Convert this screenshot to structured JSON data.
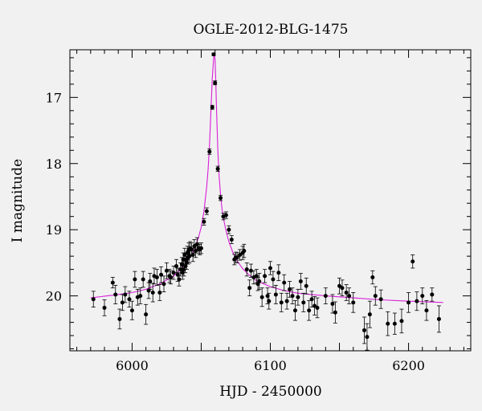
{
  "chart_data": {
    "type": "scatter",
    "title": "OGLE-2012-BLG-1475",
    "xlabel": "HJD - 2450000",
    "ylabel": "I magnitude",
    "xlim": [
      5955,
      6245
    ],
    "ylim": [
      20.83,
      16.28
    ],
    "y_inverted": true,
    "x_ticks": [
      6000,
      6100,
      6200
    ],
    "y_ticks": [
      17,
      18,
      19,
      20
    ],
    "grid": false,
    "colors": {
      "points": "#000000",
      "model": "#d81fd8",
      "background": "#f1f1f1"
    },
    "series": [
      {
        "kind": "points",
        "x": [
          5972,
          5980,
          5986,
          5988,
          5991,
          5993,
          5995,
          5998,
          6000,
          6002,
          6004,
          6006,
          6008,
          6010,
          6012,
          6013,
          6015,
          6016,
          6018,
          6020,
          6021,
          6023,
          6025,
          6027,
          6028,
          6030,
          6032,
          6033,
          6034,
          6035,
          6036,
          6036.5,
          6037,
          6037.5,
          6038,
          6038.5,
          6039,
          6039.5,
          6040,
          6040.5,
          6041,
          6041.5,
          6042,
          6043,
          6044,
          6045,
          6046,
          6047,
          6048,
          6049,
          6050,
          6052,
          6054,
          6056,
          6058,
          6059,
          6060,
          6062,
          6064,
          6066,
          6068,
          6070,
          6072,
          6074,
          6075,
          6076,
          6078,
          6080,
          6081,
          6083,
          6085,
          6086,
          6088,
          6090,
          6091,
          6092,
          6094,
          6096,
          6098,
          6099,
          6100,
          6102,
          6104,
          6106,
          6108,
          6110,
          6112,
          6114,
          6116,
          6118,
          6120,
          6122,
          6124,
          6126,
          6128,
          6130,
          6132,
          6134,
          6140,
          6145,
          6147,
          6150,
          6152,
          6155,
          6157,
          6160,
          6168,
          6170,
          6172,
          6174,
          6176,
          6180,
          6185,
          6190,
          6195,
          6200,
          6203,
          6206,
          6210,
          6213,
          6217,
          6222
        ],
        "y": [
          20.05,
          20.18,
          19.8,
          19.98,
          20.35,
          20.1,
          19.98,
          20.05,
          20.22,
          19.75,
          20.02,
          20.0,
          19.75,
          20.28,
          19.92,
          19.78,
          19.95,
          19.7,
          19.72,
          19.95,
          19.68,
          19.82,
          19.62,
          19.7,
          19.72,
          19.65,
          19.55,
          19.68,
          19.75,
          19.6,
          19.52,
          19.65,
          19.45,
          19.6,
          19.38,
          19.55,
          19.45,
          19.5,
          19.35,
          19.42,
          19.3,
          19.4,
          19.28,
          19.3,
          19.38,
          19.25,
          19.32,
          19.22,
          19.28,
          19.3,
          19.28,
          18.88,
          18.72,
          17.82,
          17.15,
          16.35,
          16.78,
          18.08,
          18.52,
          18.8,
          18.78,
          19.0,
          19.15,
          19.45,
          19.42,
          19.42,
          19.38,
          19.35,
          19.32,
          19.6,
          19.88,
          19.62,
          19.72,
          19.7,
          19.82,
          19.78,
          20.02,
          19.7,
          20.0,
          20.08,
          19.58,
          19.75,
          19.98,
          19.65,
          20.1,
          19.8,
          20.08,
          19.9,
          20.0,
          20.22,
          20.02,
          19.78,
          20.1,
          19.85,
          20.22,
          20.05,
          20.15,
          20.18,
          20.0,
          20.12,
          20.25,
          19.85,
          19.88,
          19.95,
          20.0,
          20.1,
          20.52,
          20.62,
          20.28,
          19.72,
          20.0,
          20.05,
          20.42,
          20.42,
          20.38,
          20.1,
          19.48,
          20.08,
          20.0,
          20.22,
          19.98,
          20.35
        ],
        "yerr": [
          0.12,
          0.12,
          0.08,
          0.14,
          0.15,
          0.12,
          0.12,
          0.12,
          0.14,
          0.12,
          0.12,
          0.12,
          0.12,
          0.15,
          0.12,
          0.12,
          0.14,
          0.12,
          0.12,
          0.12,
          0.12,
          0.12,
          0.12,
          0.1,
          0.1,
          0.1,
          0.1,
          0.1,
          0.1,
          0.1,
          0.1,
          0.1,
          0.1,
          0.1,
          0.1,
          0.1,
          0.1,
          0.1,
          0.1,
          0.1,
          0.1,
          0.1,
          0.1,
          0.1,
          0.1,
          0.1,
          0.1,
          0.1,
          0.08,
          0.08,
          0.08,
          0.05,
          0.05,
          0.04,
          0.03,
          0.02,
          0.03,
          0.04,
          0.04,
          0.05,
          0.05,
          0.06,
          0.06,
          0.08,
          0.08,
          0.08,
          0.08,
          0.1,
          0.1,
          0.1,
          0.12,
          0.1,
          0.1,
          0.1,
          0.1,
          0.12,
          0.14,
          0.1,
          0.12,
          0.12,
          0.1,
          0.12,
          0.14,
          0.12,
          0.14,
          0.12,
          0.12,
          0.12,
          0.12,
          0.15,
          0.12,
          0.12,
          0.14,
          0.12,
          0.15,
          0.12,
          0.14,
          0.15,
          0.12,
          0.14,
          0.16,
          0.12,
          0.12,
          0.12,
          0.12,
          0.15,
          0.2,
          0.2,
          0.2,
          0.1,
          0.14,
          0.14,
          0.18,
          0.16,
          0.18,
          0.15,
          0.1,
          0.14,
          0.12,
          0.15,
          0.1,
          0.2
        ]
      },
      {
        "kind": "model-curve",
        "x": [
          5970,
          5990,
          6000,
          6010,
          6020,
          6030,
          6035,
          6040,
          6045,
          6048,
          6050,
          6052,
          6054,
          6055,
          6056,
          6057,
          6058,
          6059,
          6059.5,
          6060,
          6060.5,
          6061,
          6062,
          6063,
          6064,
          6065,
          6066,
          6068,
          6070,
          6073,
          6076,
          6080,
          6085,
          6090,
          6100,
          6110,
          6120,
          6140,
          6160,
          6180,
          6200,
          6225
        ],
        "y": [
          20.03,
          19.98,
          19.95,
          19.9,
          19.82,
          19.7,
          19.6,
          19.48,
          19.3,
          19.12,
          18.96,
          18.72,
          18.35,
          18.08,
          17.72,
          17.22,
          16.72,
          16.4,
          16.36,
          16.42,
          16.72,
          17.12,
          17.78,
          18.2,
          18.48,
          18.68,
          18.82,
          19.02,
          19.18,
          19.35,
          19.47,
          19.59,
          19.69,
          19.77,
          19.86,
          19.92,
          19.96,
          20.0,
          20.03,
          20.06,
          20.08,
          20.1
        ]
      }
    ]
  }
}
